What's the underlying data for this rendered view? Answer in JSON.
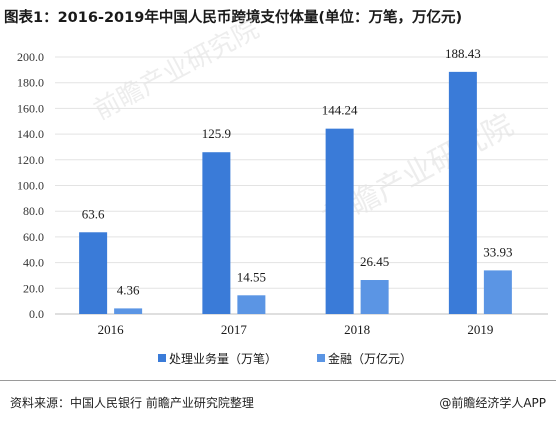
{
  "chart_data": {
    "type": "bar",
    "title": "图表1：2016-2019年中国人民币跨境支付体量(单位：万笔，万亿元)",
    "categories": [
      "2016",
      "2017",
      "2018",
      "2019"
    ],
    "series": [
      {
        "name": "处理业务量（万笔）",
        "values": [
          63.6,
          125.9,
          144.24,
          188.43
        ],
        "labels": [
          "63.6",
          "125.9",
          "144.24",
          "188.43"
        ],
        "color": "#3a7bd8"
      },
      {
        "name": "金融（万亿元）",
        "values": [
          4.36,
          14.55,
          26.45,
          33.93
        ],
        "labels": [
          "4.36",
          "14.55",
          "26.45",
          "33.93"
        ],
        "color": "#5b95e4"
      }
    ],
    "ylim": [
      0,
      200
    ],
    "yticks": [
      "0.0",
      "20.0",
      "40.0",
      "60.0",
      "80.0",
      "100.0",
      "120.0",
      "140.0",
      "160.0",
      "180.0",
      "200.0"
    ],
    "xlabel": "",
    "ylabel": "",
    "grid": true,
    "legend_position": "bottom"
  },
  "source": "资料来源：中国人民银行 前瞻产业研究院整理",
  "credit": "@前瞻经济学人APP",
  "watermark": "前瞻产业研究院"
}
